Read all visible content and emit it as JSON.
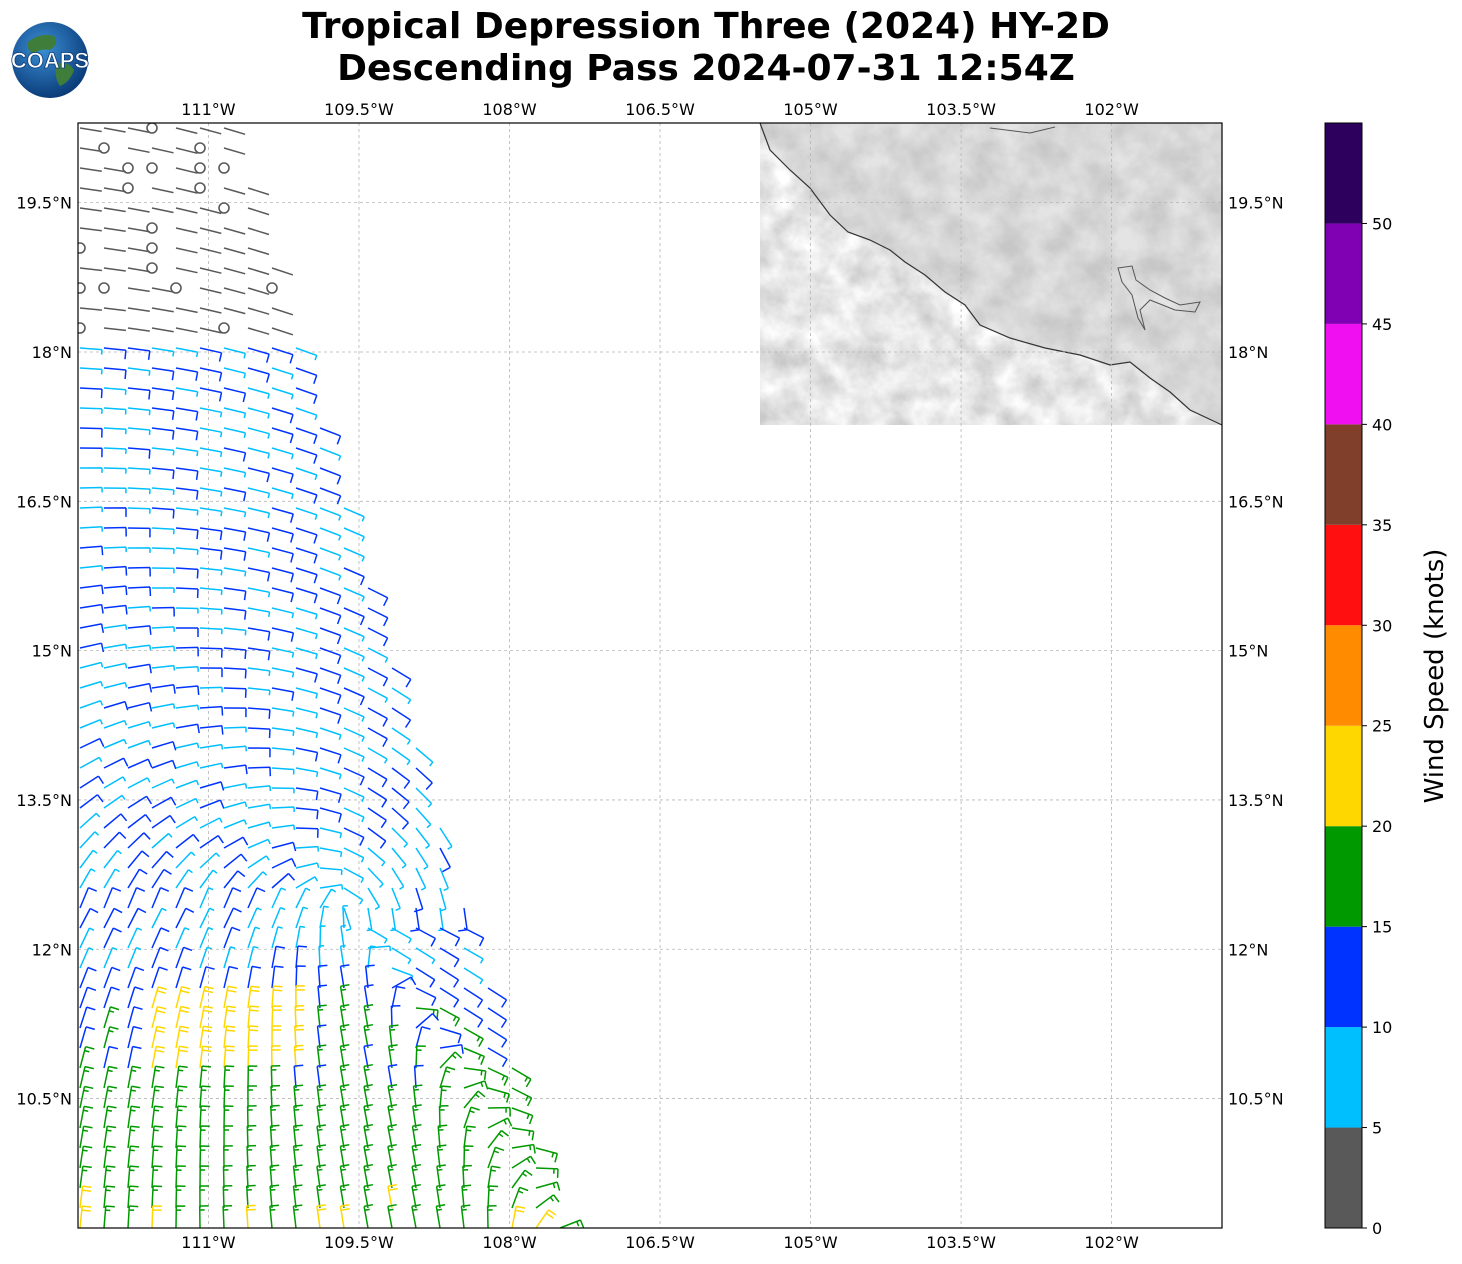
{
  "title": {
    "line1": "Tropical Depression Three (2024) HY-2D",
    "line2": "Descending Pass 2024-07-31 12:54Z"
  },
  "logo": {
    "text": "COAPS",
    "icon": "globe-icon"
  },
  "map": {
    "lon_range": [
      -112.3,
      -100.9
    ],
    "lat_range": [
      9.2,
      20.3
    ],
    "lon_ticks": [
      "111°W",
      "109.5°W",
      "108°W",
      "106.5°W",
      "105°W",
      "103.5°W",
      "102°W"
    ],
    "lon_tick_values": [
      -111,
      -109.5,
      -108,
      -106.5,
      -105,
      -103.5,
      -102
    ],
    "lat_ticks": [
      "19.5°N",
      "18°N",
      "16.5°N",
      "15°N",
      "13.5°N",
      "12°N",
      "10.5°N"
    ],
    "lat_tick_values": [
      19.5,
      18,
      16.5,
      15,
      13.5,
      12,
      10.5
    ],
    "gridlines": true,
    "land": "Mexico (grayscale terrain)",
    "circulation_center": {
      "lon": -109.7,
      "lat": 12.4
    }
  },
  "colorbar": {
    "label": "Wind Speed (knots)",
    "ticks": [
      "0",
      "5",
      "10",
      "15",
      "20",
      "25",
      "30",
      "35",
      "40",
      "45",
      "50"
    ],
    "bins": [
      {
        "min": 0,
        "max": 5,
        "color": "#595959"
      },
      {
        "min": 5,
        "max": 10,
        "color": "#00bfff"
      },
      {
        "min": 10,
        "max": 15,
        "color": "#0033ff"
      },
      {
        "min": 15,
        "max": 20,
        "color": "#009900"
      },
      {
        "min": 20,
        "max": 25,
        "color": "#ffd700"
      },
      {
        "min": 25,
        "max": 30,
        "color": "#ff8c00"
      },
      {
        "min": 30,
        "max": 35,
        "color": "#ff0f0f"
      },
      {
        "min": 35,
        "max": 40,
        "color": "#7f3f2a"
      },
      {
        "min": 40,
        "max": 45,
        "color": "#f00ff0"
      },
      {
        "min": 45,
        "max": 50,
        "color": "#8000b3"
      },
      {
        "min": 50,
        "max": 55,
        "color": "#2e005e"
      }
    ]
  }
}
